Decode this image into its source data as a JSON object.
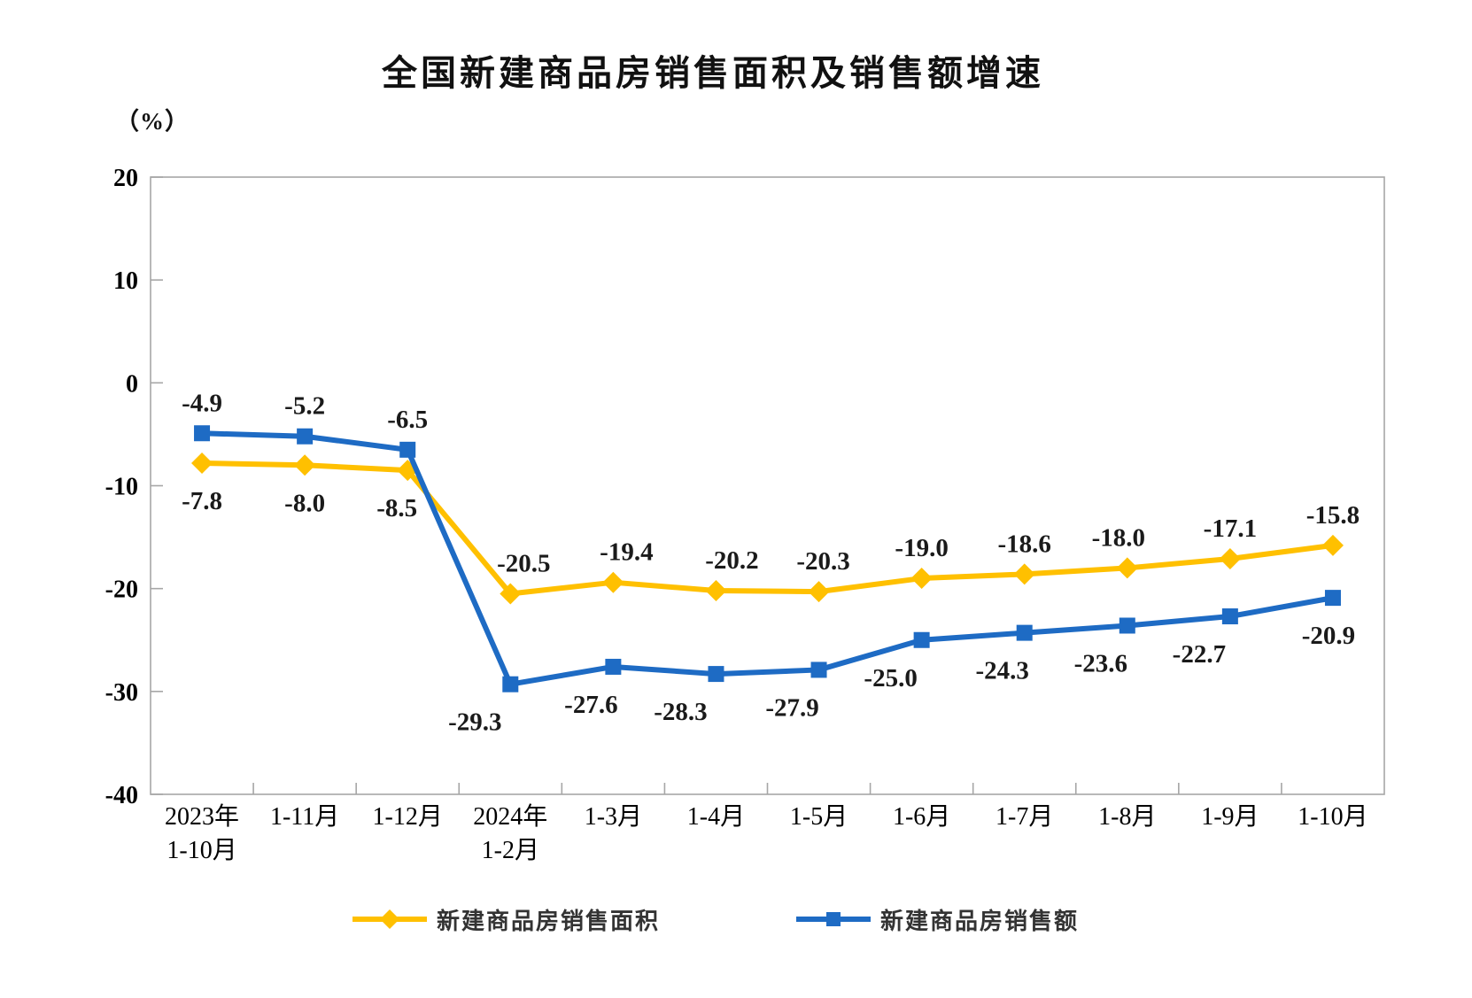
{
  "title": "全国新建商品房销售面积及销售额增速",
  "unit_label": "（%）",
  "colors": {
    "axis": "#a6a6a6",
    "axis_text": "#000000",
    "data_label": "#1a1a1a",
    "series_area": "#FFC000",
    "series_amount": "#1E6BC4"
  },
  "chart_data": {
    "type": "line",
    "title": "全国新建商品房销售面积及销售额增速",
    "unit": "（%）",
    "categories": [
      "2023年\n1-10月",
      "1-11月",
      "1-12月",
      "2024年\n1-2月",
      "1-3月",
      "1-4月",
      "1-5月",
      "1-6月",
      "1-7月",
      "1-8月",
      "1-9月",
      "1-10月"
    ],
    "ylim": [
      -40,
      20
    ],
    "y_ticks": [
      20,
      10,
      0,
      -10,
      -20,
      -30,
      -40
    ],
    "grid": false,
    "legend_position": "bottom",
    "series": [
      {
        "name": "新建商品房销售面积",
        "color": "#FFC000",
        "marker": "diamond",
        "values": [
          -7.8,
          -8.0,
          -8.5,
          -20.5,
          -19.4,
          -20.2,
          -20.3,
          -19.0,
          -18.6,
          -18.0,
          -17.1,
          -15.8
        ],
        "label_side": [
          "below",
          "below",
          "below",
          "above",
          "above",
          "above",
          "above",
          "above",
          "above",
          "above",
          "above",
          "above"
        ],
        "label_dx": [
          0,
          0,
          -12,
          15,
          15,
          18,
          5,
          0,
          0,
          -10,
          0,
          0
        ]
      },
      {
        "name": "新建商品房销售额",
        "color": "#1E6BC4",
        "marker": "square",
        "values": [
          -4.9,
          -5.2,
          -6.5,
          -29.3,
          -27.6,
          -28.3,
          -27.9,
          -25.0,
          -24.3,
          -23.6,
          -22.7,
          -20.9
        ],
        "label_side": [
          "above",
          "above",
          "above",
          "below",
          "below",
          "below",
          "below",
          "below",
          "below",
          "below",
          "below",
          "below"
        ],
        "label_dx": [
          0,
          0,
          0,
          -40,
          -25,
          -40,
          -30,
          -35,
          -25,
          -30,
          -35,
          -5
        ]
      }
    ]
  }
}
